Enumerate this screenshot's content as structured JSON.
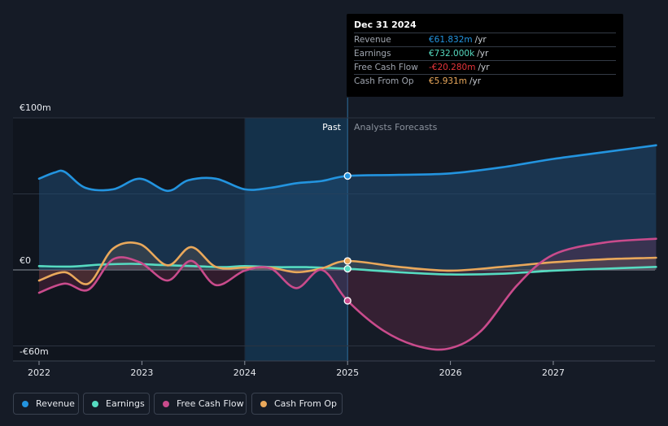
{
  "chart_data": {
    "type": "area",
    "x_ticks": [
      "2022",
      "2023",
      "2024",
      "2025",
      "2026",
      "2027"
    ],
    "y_ticks": [
      "€100m",
      "€0",
      "-€60m"
    ],
    "past_label": "Past",
    "forecast_label": "Analysts Forecasts",
    "past_end": "Dec 31 2024",
    "ylim": [
      -60,
      100
    ],
    "series": [
      {
        "name": "Revenue",
        "color": "#2394df",
        "points": [
          [
            2022.0,
            60
          ],
          [
            2022.15,
            64
          ],
          [
            2022.25,
            64.5
          ],
          [
            2022.45,
            54
          ],
          [
            2022.72,
            53
          ],
          [
            2022.98,
            60
          ],
          [
            2023.25,
            52
          ],
          [
            2023.45,
            59
          ],
          [
            2023.72,
            60
          ],
          [
            2024.0,
            53
          ],
          [
            2024.25,
            54
          ],
          [
            2024.5,
            57
          ],
          [
            2024.75,
            58.5
          ],
          [
            2025.0,
            61.8
          ],
          [
            2025.5,
            62.5
          ],
          [
            2026.0,
            63.5
          ],
          [
            2026.5,
            67.5
          ],
          [
            2027.0,
            73
          ],
          [
            2027.5,
            77.5
          ],
          [
            2028.0,
            82
          ]
        ]
      },
      {
        "name": "Earnings",
        "color": "#56dbc1",
        "points": [
          [
            2022.0,
            2.5
          ],
          [
            2022.3,
            2.2
          ],
          [
            2022.6,
            3.5
          ],
          [
            2022.9,
            4
          ],
          [
            2023.2,
            3.2
          ],
          [
            2023.5,
            2.5
          ],
          [
            2023.8,
            1.8
          ],
          [
            2024.0,
            2.5
          ],
          [
            2024.3,
            1.8
          ],
          [
            2024.6,
            1.8
          ],
          [
            2025.0,
            0.73
          ],
          [
            2025.5,
            -1.5
          ],
          [
            2026.0,
            -3
          ],
          [
            2026.5,
            -2.5
          ],
          [
            2027.0,
            -0.5
          ],
          [
            2027.5,
            0.8
          ],
          [
            2028.0,
            2
          ]
        ]
      },
      {
        "name": "Free Cash Flow",
        "color": "#c94b8c",
        "points": [
          [
            2022.0,
            -15
          ],
          [
            2022.25,
            -9
          ],
          [
            2022.48,
            -13
          ],
          [
            2022.72,
            7
          ],
          [
            2022.98,
            5
          ],
          [
            2023.25,
            -7
          ],
          [
            2023.48,
            6
          ],
          [
            2023.72,
            -10
          ],
          [
            2024.0,
            -0.5
          ],
          [
            2024.25,
            1
          ],
          [
            2024.5,
            -12
          ],
          [
            2024.75,
            0
          ],
          [
            2025.0,
            -20.3
          ],
          [
            2025.35,
            -40
          ],
          [
            2025.7,
            -50.5
          ],
          [
            2026.0,
            -51.5
          ],
          [
            2026.3,
            -40
          ],
          [
            2026.65,
            -10
          ],
          [
            2027.0,
            10
          ],
          [
            2027.5,
            18
          ],
          [
            2028.0,
            20.5
          ]
        ]
      },
      {
        "name": "Cash From Op",
        "color": "#e9a85b",
        "points": [
          [
            2022.0,
            -7
          ],
          [
            2022.25,
            -1.5
          ],
          [
            2022.48,
            -9
          ],
          [
            2022.72,
            14
          ],
          [
            2022.98,
            17
          ],
          [
            2023.25,
            3
          ],
          [
            2023.48,
            15
          ],
          [
            2023.72,
            2
          ],
          [
            2024.0,
            1.5
          ],
          [
            2024.25,
            1.5
          ],
          [
            2024.5,
            -1.5
          ],
          [
            2024.75,
            1
          ],
          [
            2025.0,
            5.9
          ],
          [
            2025.5,
            2
          ],
          [
            2026.0,
            -0.5
          ],
          [
            2026.5,
            2
          ],
          [
            2027.0,
            5
          ],
          [
            2027.5,
            7
          ],
          [
            2028.0,
            8
          ]
        ]
      }
    ]
  },
  "tooltip": {
    "date": "Dec 31 2024",
    "unit": "/yr",
    "rows": [
      {
        "name": "Revenue",
        "value": "€61.832m",
        "color": "#2394df"
      },
      {
        "name": "Earnings",
        "value": "€732.000k",
        "color": "#56dbc1"
      },
      {
        "name": "Free Cash Flow",
        "value": "-€20.280m",
        "color": "#e5343a"
      },
      {
        "name": "Cash From Op",
        "value": "€5.931m",
        "color": "#e9a85b"
      }
    ]
  },
  "legend": [
    {
      "label": "Revenue",
      "color": "#2394df"
    },
    {
      "label": "Earnings",
      "color": "#56dbc1"
    },
    {
      "label": "Free Cash Flow",
      "color": "#c94b8c"
    },
    {
      "label": "Cash From Op",
      "color": "#e9a85b"
    }
  ]
}
